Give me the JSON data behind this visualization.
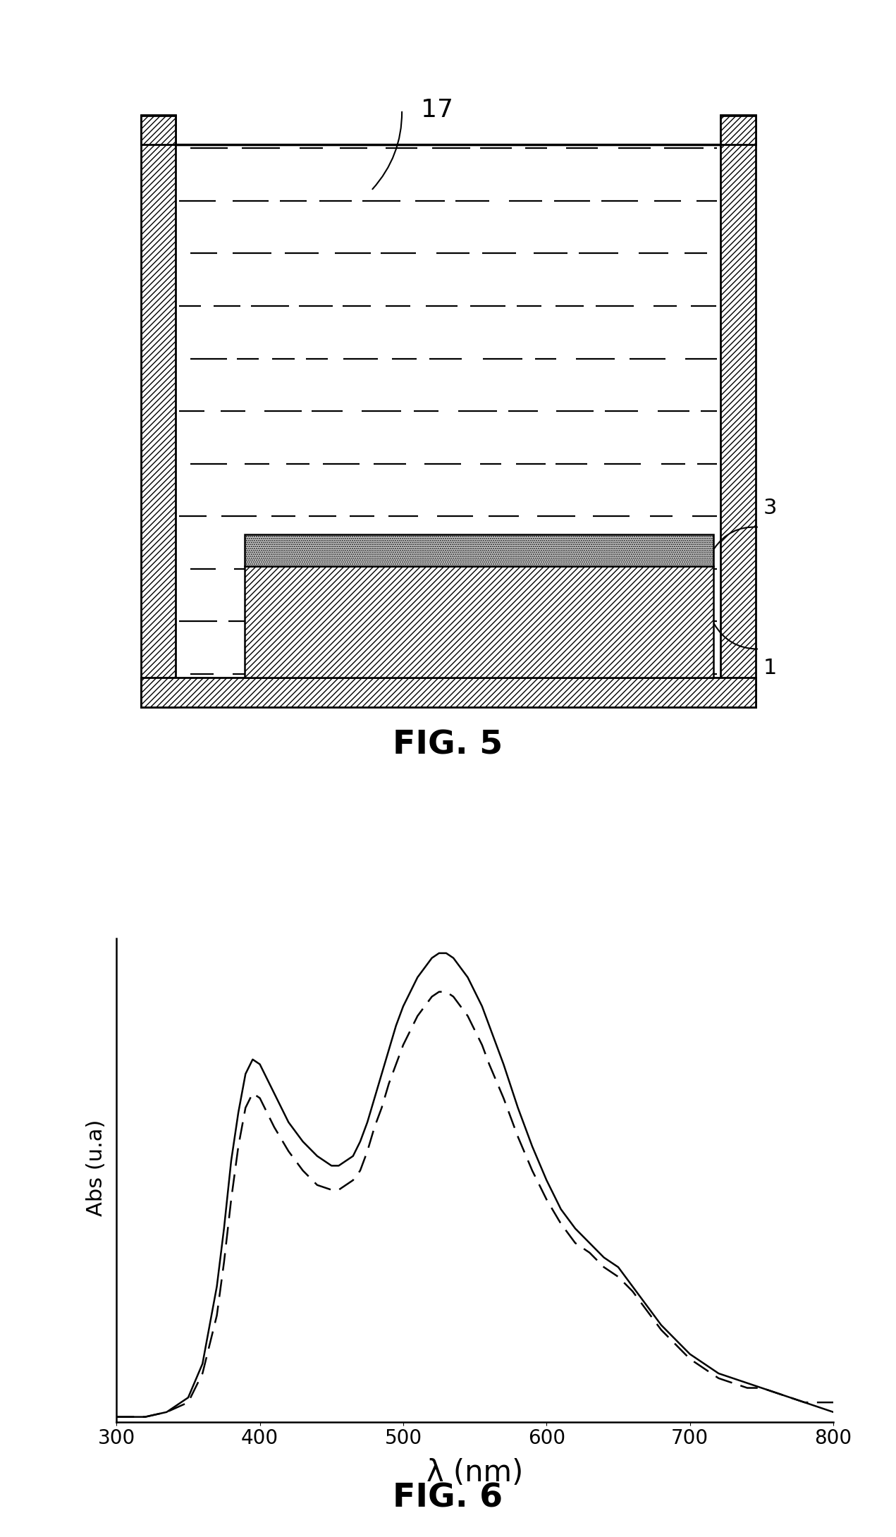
{
  "fig5": {
    "title": "FIG. 5",
    "label_17": "17",
    "label_3": "3",
    "label_1": "1"
  },
  "fig6": {
    "title": "FIG. 6",
    "xlabel": "λ (nm)",
    "ylabel": "Abs (u.a)",
    "xlim": [
      300,
      800
    ],
    "ylim": [
      0,
      1.05
    ],
    "solid_line_color": "#000000",
    "dashed_line_color": "#000000",
    "solid_x": [
      300,
      320,
      335,
      350,
      360,
      370,
      375,
      380,
      385,
      390,
      395,
      400,
      405,
      410,
      420,
      430,
      440,
      450,
      455,
      460,
      465,
      470,
      475,
      480,
      485,
      490,
      495,
      500,
      505,
      510,
      515,
      520,
      525,
      530,
      535,
      540,
      545,
      550,
      555,
      560,
      570,
      580,
      590,
      600,
      610,
      620,
      630,
      640,
      650,
      660,
      670,
      680,
      690,
      700,
      710,
      715,
      720,
      730,
      740,
      750,
      760,
      770,
      780,
      790,
      800
    ],
    "solid_y": [
      0.01,
      0.01,
      0.02,
      0.05,
      0.12,
      0.28,
      0.4,
      0.54,
      0.64,
      0.72,
      0.75,
      0.74,
      0.71,
      0.68,
      0.62,
      0.58,
      0.55,
      0.53,
      0.53,
      0.54,
      0.55,
      0.58,
      0.62,
      0.67,
      0.72,
      0.77,
      0.82,
      0.86,
      0.89,
      0.92,
      0.94,
      0.96,
      0.97,
      0.97,
      0.96,
      0.94,
      0.92,
      0.89,
      0.86,
      0.82,
      0.74,
      0.65,
      0.57,
      0.5,
      0.44,
      0.4,
      0.37,
      0.34,
      0.32,
      0.28,
      0.24,
      0.2,
      0.17,
      0.14,
      0.12,
      0.11,
      0.1,
      0.09,
      0.08,
      0.07,
      0.06,
      0.05,
      0.04,
      0.03,
      0.02
    ],
    "dashed_x": [
      300,
      320,
      335,
      350,
      360,
      370,
      375,
      380,
      385,
      390,
      395,
      400,
      405,
      410,
      420,
      430,
      440,
      450,
      455,
      460,
      465,
      470,
      475,
      480,
      485,
      490,
      495,
      500,
      505,
      510,
      515,
      520,
      525,
      530,
      535,
      540,
      545,
      550,
      555,
      560,
      570,
      580,
      590,
      600,
      610,
      620,
      630,
      640,
      650,
      660,
      670,
      680,
      690,
      700,
      710,
      715,
      720,
      730,
      740,
      750,
      760,
      770,
      780,
      790,
      800
    ],
    "dashed_y": [
      0.01,
      0.01,
      0.02,
      0.04,
      0.1,
      0.22,
      0.33,
      0.46,
      0.57,
      0.65,
      0.68,
      0.67,
      0.64,
      0.61,
      0.56,
      0.52,
      0.49,
      0.48,
      0.48,
      0.49,
      0.5,
      0.52,
      0.56,
      0.61,
      0.65,
      0.7,
      0.74,
      0.78,
      0.81,
      0.84,
      0.86,
      0.88,
      0.89,
      0.89,
      0.88,
      0.86,
      0.84,
      0.81,
      0.78,
      0.74,
      0.67,
      0.59,
      0.52,
      0.46,
      0.41,
      0.37,
      0.35,
      0.32,
      0.3,
      0.27,
      0.23,
      0.19,
      0.16,
      0.13,
      0.11,
      0.1,
      0.09,
      0.08,
      0.07,
      0.07,
      0.06,
      0.05,
      0.04,
      0.04,
      0.04
    ],
    "xticks": [
      300,
      400,
      500,
      600,
      700,
      800
    ],
    "title_fontsize": 34,
    "axis_fontsize": 22,
    "tick_fontsize": 20
  },
  "background_color": "#ffffff",
  "line_color": "#000000"
}
